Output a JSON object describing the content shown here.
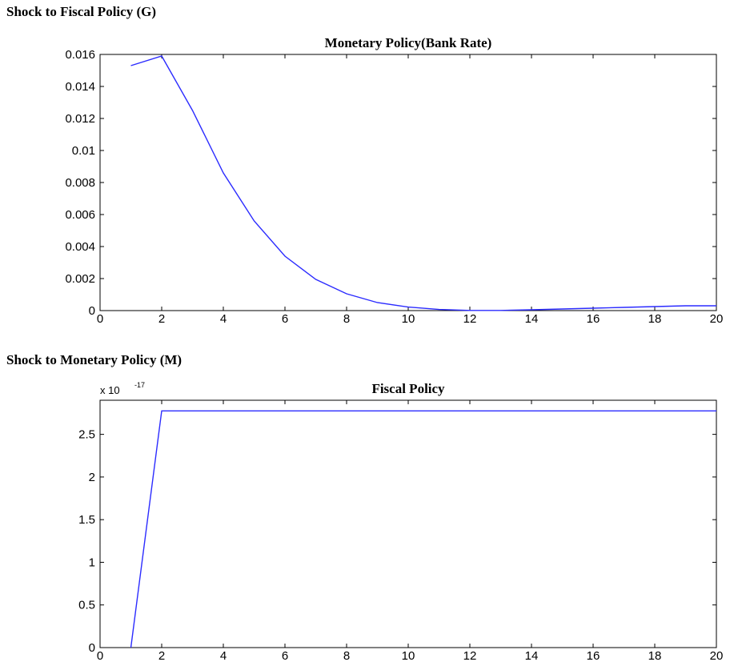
{
  "sections": [
    {
      "label": "Shock to Fiscal Policy (G)"
    },
    {
      "label": "Shock to Monetary Policy (M)"
    }
  ],
  "chart_data": [
    {
      "type": "line",
      "title": "Monetary Policy(Bank Rate)",
      "xlabel": "",
      "ylabel": "",
      "xlim": [
        0,
        20
      ],
      "ylim": [
        0,
        0.016
      ],
      "xticks": [
        0,
        2,
        4,
        6,
        8,
        10,
        12,
        14,
        16,
        18,
        20
      ],
      "yticks": [
        0,
        0.002,
        0.004,
        0.006,
        0.008,
        0.01,
        0.012,
        0.014,
        0.016
      ],
      "ytick_labels": [
        "0",
        "0.002",
        "0.004",
        "0.006",
        "0.008",
        "0.01",
        "0.012",
        "0.014",
        "0.016"
      ],
      "grid": false,
      "line_color": "#2b2bff",
      "x": [
        1,
        2,
        3,
        4,
        5,
        6,
        7,
        8,
        9,
        10,
        11,
        12,
        13,
        14,
        15,
        16,
        17,
        18,
        19,
        20
      ],
      "y": [
        0.0153,
        0.0159,
        0.0125,
        0.0086,
        0.0056,
        0.0034,
        0.00195,
        0.00105,
        0.0005,
        0.00022,
        7e-05,
        1e-05,
        1e-05,
        5e-05,
        0.0001,
        0.00015,
        0.0002,
        0.00025,
        0.0003,
        0.0003
      ]
    },
    {
      "type": "line",
      "title": "Fiscal Policy",
      "xlabel": "",
      "ylabel": "",
      "y_exponent": "x 10",
      "y_exponent_power": "-17",
      "xlim": [
        0,
        20
      ],
      "ylim": [
        0,
        2.9
      ],
      "xticks": [
        0,
        2,
        4,
        6,
        8,
        10,
        12,
        14,
        16,
        18,
        20
      ],
      "yticks": [
        0,
        0.5,
        1,
        1.5,
        2,
        2.5
      ],
      "ytick_labels": [
        "0",
        "0.5",
        "1",
        "1.5",
        "2",
        "2.5"
      ],
      "grid": false,
      "line_color": "#2b2bff",
      "x": [
        1,
        2,
        3,
        4,
        5,
        6,
        7,
        8,
        9,
        10,
        11,
        12,
        13,
        14,
        15,
        16,
        17,
        18,
        19,
        20
      ],
      "y": [
        0,
        2.7756,
        2.7756,
        2.7756,
        2.7756,
        2.7756,
        2.7756,
        2.7756,
        2.7756,
        2.7756,
        2.7756,
        2.7756,
        2.7756,
        2.7756,
        2.7756,
        2.7756,
        2.7756,
        2.7756,
        2.7756,
        2.7756
      ]
    }
  ]
}
